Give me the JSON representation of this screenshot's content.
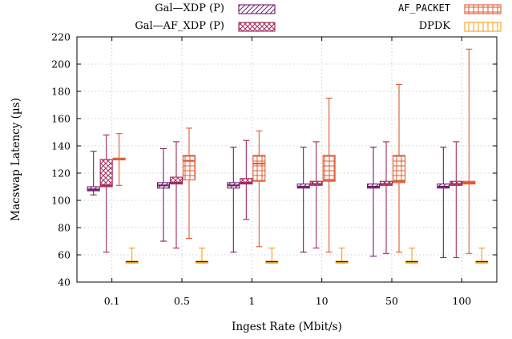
{
  "chart_data": {
    "type": "box",
    "xlabel": "Ingest Rate (Mbit/s)",
    "ylabel": "Macswap Latency (µs)",
    "ylim": [
      40,
      220
    ],
    "yticks": [
      40,
      60,
      80,
      100,
      120,
      140,
      160,
      180,
      200,
      220
    ],
    "categories": [
      "0.1",
      "0.5",
      "1",
      "10",
      "50",
      "100"
    ],
    "grid": "dotted",
    "legend_placement": "top",
    "series": [
      {
        "name": "Gal—XDP (P)",
        "color": "#6e1f6e",
        "pattern": "diagonal-hatch",
        "boxes": [
          {
            "min": 104,
            "q1": 107,
            "median": 108,
            "q3": 110,
            "max": 136
          },
          {
            "min": 70,
            "q1": 109,
            "median": 111,
            "q3": 113,
            "max": 138
          },
          {
            "min": 62,
            "q1": 109,
            "median": 111,
            "q3": 113,
            "max": 139
          },
          {
            "min": 62,
            "q1": 109,
            "median": 110,
            "q3": 112,
            "max": 139
          },
          {
            "min": 59,
            "q1": 109,
            "median": 110,
            "q3": 112,
            "max": 139
          },
          {
            "min": 58,
            "q1": 109,
            "median": 110,
            "q3": 112,
            "max": 139
          }
        ]
      },
      {
        "name": "Gal—AF_XDP (P)",
        "color": "#a3295c",
        "pattern": "crosshatch",
        "boxes": [
          {
            "min": 62,
            "q1": 110,
            "median": 111,
            "q3": 130,
            "max": 148
          },
          {
            "min": 65,
            "q1": 112,
            "median": 113,
            "q3": 117,
            "max": 143
          },
          {
            "min": 86,
            "q1": 112,
            "median": 113,
            "q3": 116,
            "max": 144
          },
          {
            "min": 65,
            "q1": 111,
            "median": 112,
            "q3": 114,
            "max": 143
          },
          {
            "min": 61,
            "q1": 111,
            "median": 112,
            "q3": 114,
            "max": 143
          },
          {
            "min": 58,
            "q1": 111,
            "median": 112,
            "q3": 114,
            "max": 143
          }
        ]
      },
      {
        "name": "AF_PACKET",
        "color": "#e05a33",
        "pattern": "grid",
        "boxes": [
          {
            "min": 111,
            "q1": 130,
            "median": 130,
            "q3": 131,
            "max": 149
          },
          {
            "min": 72,
            "q1": 115,
            "median": 129,
            "q3": 133,
            "max": 153
          },
          {
            "min": 66,
            "q1": 114,
            "median": 127,
            "q3": 133,
            "max": 151
          },
          {
            "min": 62,
            "q1": 114,
            "median": 115,
            "q3": 133,
            "max": 175
          },
          {
            "min": 62,
            "q1": 113,
            "median": 114,
            "q3": 133,
            "max": 185
          },
          {
            "min": 61,
            "q1": 112,
            "median": 113,
            "q3": 114,
            "max": 211
          }
        ]
      },
      {
        "name": "DPDK",
        "color": "#f0a21c",
        "pattern": "vertical-lines",
        "boxes": [
          {
            "min": 54,
            "q1": 54,
            "median": 55,
            "q3": 55,
            "max": 65
          },
          {
            "min": 54,
            "q1": 54,
            "median": 55,
            "q3": 55,
            "max": 65
          },
          {
            "min": 54,
            "q1": 54,
            "median": 55,
            "q3": 55,
            "max": 65
          },
          {
            "min": 54,
            "q1": 54,
            "median": 55,
            "q3": 55,
            "max": 65
          },
          {
            "min": 54,
            "q1": 54,
            "median": 55,
            "q3": 55,
            "max": 65
          },
          {
            "min": 54,
            "q1": 54,
            "median": 55,
            "q3": 55,
            "max": 65
          }
        ]
      }
    ]
  },
  "legend": [
    {
      "label": "Gal—XDP (P)",
      "style": "serif"
    },
    {
      "label": "Gal—AF_XDP (P)",
      "style": "serif"
    },
    {
      "label": "AF_PACKET",
      "style": "mono"
    },
    {
      "label": "DPDK",
      "style": "serif"
    }
  ],
  "colors": {
    "gal_xdp": "#6e1f6e",
    "gal_af_xdp": "#a3295c",
    "af_packet": "#e05a33",
    "dpdk": "#f0a21c",
    "grid": "#bfbfbf"
  }
}
